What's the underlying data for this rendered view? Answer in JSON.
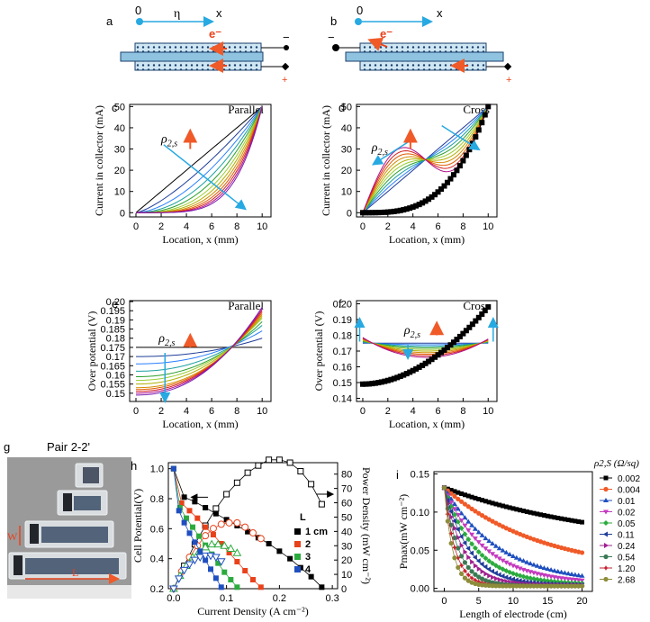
{
  "panels": {
    "a": {
      "letter": "a",
      "origin": "0",
      "eta": "η",
      "x": "x",
      "electron": "e⁻",
      "minus": "−",
      "plus": "+"
    },
    "b": {
      "letter": "b",
      "origin": "0",
      "x": "x",
      "electron": "e⁻",
      "minus": "−",
      "plus": "+"
    }
  },
  "colors": {
    "arrow_blue": "#27a9e1",
    "arrow_red": "#f05a28",
    "cell_fill": "#8fc3e0",
    "cell_edge": "#1a3f6b",
    "family": [
      "#000000",
      "#1f3d99",
      "#2a7fff",
      "#1aa0a0",
      "#2ca02c",
      "#9acd32",
      "#b0b000",
      "#d48a00",
      "#e05a00",
      "#d42020",
      "#b0108a",
      "#7a1fb0"
    ]
  },
  "chart_data": [
    {
      "id": "c",
      "type": "line",
      "letter": "c",
      "title": "Parallel",
      "xlabel": "Location, x (mm)",
      "ylabel": "Current in collector (mA)",
      "xlim": [
        -0.5,
        10.7
      ],
      "ylim": [
        -2,
        51
      ],
      "xticks": [
        0,
        2,
        4,
        6,
        8,
        10
      ],
      "yticks": [
        0,
        10,
        20,
        30,
        40,
        50
      ],
      "xtick_labels": [
        "0",
        "2",
        "4",
        "6",
        "8",
        "10"
      ],
      "ytick_labels": [
        "0",
        "10",
        "20",
        "30",
        "40",
        "50"
      ],
      "annotation": "ρ2,s",
      "series_exponents": [
        1.0,
        1.35,
        1.7,
        2.05,
        2.4,
        2.75,
        3.1,
        3.45,
        3.8,
        4.15,
        4.5,
        4.85
      ],
      "curve_kind": "parallel_current",
      "x_range": [
        0,
        10
      ],
      "y_end": 50
    },
    {
      "id": "d",
      "type": "line",
      "letter": "d",
      "title": "Cross",
      "xlabel": "Location, x (mm)",
      "ylabel": "Current in collector (mA)",
      "xlim": [
        -0.5,
        10.7
      ],
      "ylim": [
        -2,
        51
      ],
      "xticks": [
        0,
        2,
        4,
        6,
        8,
        10
      ],
      "yticks": [
        0,
        10,
        20,
        30,
        40,
        50
      ],
      "xtick_labels": [
        "0",
        "2",
        "4",
        "6",
        "8",
        "10"
      ],
      "ytick_labels": [
        "0",
        "10",
        "20",
        "30",
        "40",
        "50"
      ],
      "annotation": "ρ2,s",
      "series_exponents": [
        1.0,
        1.4,
        1.8,
        2.2,
        2.6,
        3.0,
        3.4,
        3.8,
        4.2,
        4.6
      ],
      "curve_kind": "cross_current",
      "x_range": [
        0,
        10
      ],
      "y_end": 50
    },
    {
      "id": "e",
      "type": "line",
      "letter": "e",
      "title": "Parallel",
      "xlabel": "Location, x (mm)",
      "ylabel": "Over potential (V)",
      "xlim": [
        -0.5,
        10.7
      ],
      "ylim": [
        0.1455,
        0.2005
      ],
      "xticks": [
        0,
        2,
        4,
        6,
        8,
        10
      ],
      "yticks": [
        0.15,
        0.155,
        0.16,
        0.165,
        0.17,
        0.175,
        0.18,
        0.185,
        0.19,
        0.195,
        0.2
      ],
      "xtick_labels": [
        "0",
        "2",
        "4",
        "6",
        "8",
        "10"
      ],
      "ytick_labels": [
        "0.15",
        "0.155",
        "0.16",
        "0.165",
        "0.17",
        "0.175",
        "0.18",
        "0.185",
        "0.19",
        "0.195",
        "0.20"
      ],
      "annotation": "ρ2,s",
      "series_start": [
        0.175,
        0.17,
        0.166,
        0.162,
        0.159,
        0.157,
        0.155,
        0.153,
        0.152,
        0.151,
        0.15,
        0.149
      ],
      "series_end": [
        0.175,
        0.18,
        0.184,
        0.187,
        0.189,
        0.191,
        0.192,
        0.193,
        0.194,
        0.195,
        0.196,
        0.197
      ],
      "curve_kind": "parallel_eta",
      "x_range": [
        0,
        10
      ]
    },
    {
      "id": "f",
      "type": "line",
      "letter": "f",
      "title": "Cross",
      "xlabel": "Location, x (mm)",
      "ylabel": "Over potential (V)",
      "xlim": [
        -0.5,
        10.7
      ],
      "ylim": [
        0.138,
        0.202
      ],
      "xticks": [
        0,
        2,
        4,
        6,
        8,
        10
      ],
      "yticks": [
        0.14,
        0.15,
        0.16,
        0.17,
        0.18,
        0.19,
        0.2
      ],
      "xtick_labels": [
        "0",
        "2",
        "4",
        "6",
        "8",
        "10"
      ],
      "ytick_labels": [
        "0.14",
        "0.15",
        "0.16",
        "0.17",
        "0.18",
        "0.19",
        "0.20"
      ],
      "annotation": "ρ2,s",
      "series_depth": [
        0.0,
        0.001,
        0.002,
        0.003,
        0.004,
        0.005,
        0.006,
        0.007,
        0.008,
        0.009
      ],
      "curve_kind": "cross_eta",
      "x_range": [
        0,
        10
      ],
      "black_curve": {
        "x_start": 0,
        "y_start": 0.149,
        "x_end": 10,
        "y_end": 0.198
      }
    },
    {
      "id": "h",
      "type": "scatter",
      "letter": "h",
      "xlabel": "Current Density (A cm⁻²)",
      "ylabel": "Cell Potential(V)",
      "ylabel_right": "Power Density (mW cm⁻²)",
      "xlim": [
        -0.01,
        0.31
      ],
      "ylim": [
        0.2,
        1.04
      ],
      "ylim_right": [
        0,
        88
      ],
      "xticks": [
        0.0,
        0.1,
        0.2,
        0.3
      ],
      "yticks": [
        0.2,
        0.4,
        0.6,
        0.8,
        1.0
      ],
      "yticks_right": [
        0,
        10,
        20,
        30,
        40,
        50,
        60,
        70,
        80
      ],
      "xtick_labels": [
        "0.0",
        "0.1",
        "0.2",
        "0.3"
      ],
      "ytick_labels": [
        "0.2",
        "0.4",
        "0.6",
        "0.8",
        "1.0"
      ],
      "ytick_labels_right": [
        "0",
        "10",
        "20",
        "30",
        "40",
        "50",
        "60",
        "70",
        "80"
      ],
      "legend_title": "L",
      "series": [
        {
          "name": "1 cm",
          "color": "#000000",
          "marker": "square",
          "x": [
            0.0,
            0.02,
            0.04,
            0.06,
            0.08,
            0.1,
            0.12,
            0.14,
            0.16,
            0.18,
            0.2,
            0.22,
            0.24,
            0.26,
            0.28
          ],
          "y": [
            1.0,
            0.81,
            0.78,
            0.74,
            0.7,
            0.66,
            0.62,
            0.58,
            0.54,
            0.5,
            0.45,
            0.4,
            0.34,
            0.28,
            0.21
          ],
          "power": [
            0,
            16,
            31,
            44,
            56,
            66,
            74,
            81,
            86,
            90,
            90,
            88,
            82,
            73,
            59
          ]
        },
        {
          "name": "2",
          "color": "#e8421b",
          "marker": "square",
          "x": [
            0.0,
            0.015,
            0.03,
            0.045,
            0.06,
            0.075,
            0.09,
            0.105,
            0.12,
            0.135,
            0.15,
            0.165
          ],
          "y": [
            1.0,
            0.77,
            0.72,
            0.67,
            0.61,
            0.56,
            0.5,
            0.44,
            0.38,
            0.32,
            0.26,
            0.21
          ],
          "power": [
            0,
            12,
            22,
            30,
            37,
            42,
            45,
            46,
            46,
            43,
            39,
            35
          ]
        },
        {
          "name": "3",
          "color": "#2bab3e",
          "marker": "square",
          "x": [
            0.0,
            0.012,
            0.024,
            0.036,
            0.048,
            0.06,
            0.072,
            0.084,
            0.096,
            0.108,
            0.12
          ],
          "y": [
            1.0,
            0.74,
            0.67,
            0.61,
            0.55,
            0.49,
            0.43,
            0.37,
            0.31,
            0.26,
            0.21
          ],
          "power": [
            0,
            9,
            16,
            22,
            26,
            29,
            31,
            31,
            30,
            28,
            25
          ]
        },
        {
          "name": "4",
          "color": "#1f4fbf",
          "marker": "square",
          "x": [
            0.0,
            0.01,
            0.02,
            0.03,
            0.04,
            0.05,
            0.06,
            0.07,
            0.08,
            0.09
          ],
          "y": [
            1.0,
            0.72,
            0.64,
            0.57,
            0.51,
            0.45,
            0.39,
            0.33,
            0.27,
            0.21
          ],
          "power": [
            0,
            7,
            13,
            17,
            20,
            22,
            23,
            23,
            22,
            19
          ]
        }
      ]
    },
    {
      "id": "i",
      "type": "scatter",
      "letter": "i",
      "xlabel": "Length of electrode (cm)",
      "ylabel": "Pmax(mW cm⁻²)",
      "xlim": [
        -1.5,
        21.5
      ],
      "ylim": [
        -0.004,
        0.153
      ],
      "xticks": [
        0,
        5,
        10,
        15,
        20
      ],
      "yticks": [
        0.0,
        0.05,
        0.1,
        0.15
      ],
      "xtick_labels": [
        "0",
        "5",
        "10",
        "15",
        "20"
      ],
      "ytick_labels": [
        "0.00",
        "0.05",
        "0.10",
        "0.15"
      ],
      "legend_title": "ρ2,S (Ω/sq)",
      "series": [
        {
          "name": "0.002",
          "color": "#000000",
          "marker": "square",
          "asymptote": 0.052,
          "decay": 24
        },
        {
          "name": "0.004",
          "color": "#f05a28",
          "marker": "circle",
          "asymptote": 0.02,
          "decay": 14
        },
        {
          "name": "0.01",
          "color": "#1f4fbf",
          "marker": "triangle-up",
          "asymptote": 0.006,
          "decay": 8
        },
        {
          "name": "0.02",
          "color": "#c43abf",
          "marker": "triangle-down",
          "asymptote": 0.006,
          "decay": 6
        },
        {
          "name": "0.05",
          "color": "#2bab3e",
          "marker": "diamond",
          "asymptote": 0.005,
          "decay": 4.6
        },
        {
          "name": "0.11",
          "color": "#1f3d99",
          "marker": "triangle-left",
          "asymptote": 0.004,
          "decay": 3.6
        },
        {
          "name": "0.24",
          "color": "#a0208f",
          "marker": "triangle-right",
          "asymptote": 0.004,
          "decay": 2.8
        },
        {
          "name": "0.54",
          "color": "#3a7a55",
          "marker": "hexagon",
          "asymptote": 0.003,
          "decay": 2.1
        },
        {
          "name": "1.20",
          "color": "#c71f2c",
          "marker": "star",
          "asymptote": 0.003,
          "decay": 1.6
        },
        {
          "name": "2.68",
          "color": "#8c8c3a",
          "marker": "circle",
          "asymptote": 0.003,
          "decay": 1.2
        }
      ],
      "y0": 0.132
    }
  ],
  "photo": {
    "letter": "g",
    "title": "Pair 2-2'",
    "w_label": "W",
    "l_label": "L"
  }
}
